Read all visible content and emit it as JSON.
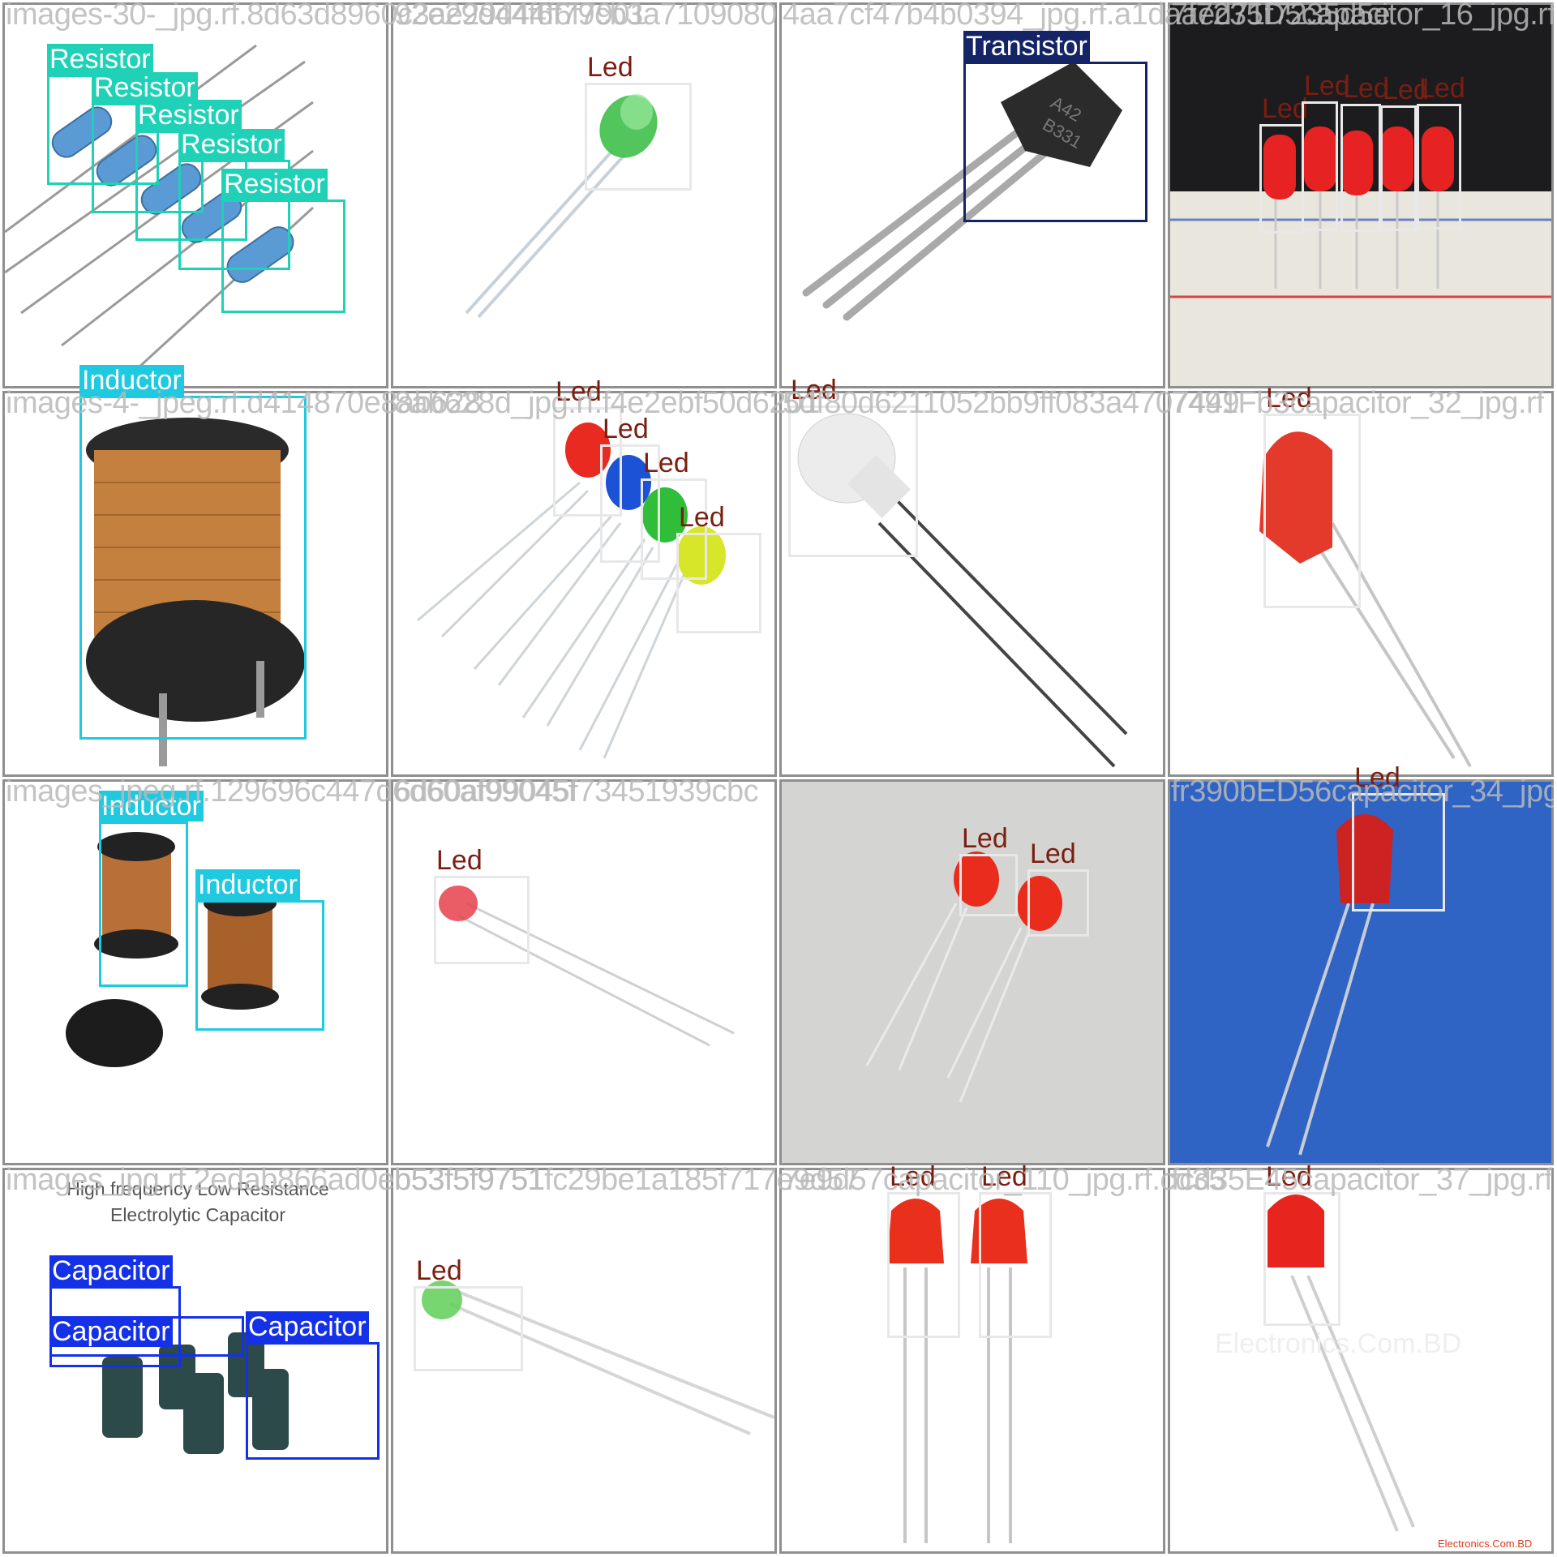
{
  "colors": {
    "Resistor": "#1fd1b6",
    "Led": "#e8e8e8",
    "Led_text": "#7a1e12",
    "Transistor": "#142466",
    "Inductor": "#1fc9e0",
    "Capacitor": "#1431e8",
    "tile_border": "#8f8f8f"
  },
  "tiles": [
    {
      "filename": "images-30-_jpg.rf.8d63d8960c3ae29d44f6f7901"
    },
    {
      "filename": "92e29d44f6f79cb3a7109080"
    },
    {
      "filename": "4aa7cf47b4b0394_jpg.rf.a1daaed71f7235d5e"
    },
    {
      "filename": "7f7235D5capacitor_16_jpg.rf"
    },
    {
      "filename": "images-4-_jpeg.rf.d414870e8ab628"
    },
    {
      "filename": "8ab628d_jpg.rf.f4e2ebf50d6201"
    },
    {
      "filename": "5df80d6211052bb9ff083a4707449"
    },
    {
      "filename": "7491Fb3capacitor_32_jpg.rf"
    },
    {
      "filename": "images_jpeg.rf.129696c447d6d60af99045f"
    },
    {
      "filename": "6d60af99045f73451939cbc"
    },
    {
      "filename": ""
    },
    {
      "filename": "fr390bED56capacitor_34_jpg.rf"
    },
    {
      "filename": "images_jpg.rf.2edab866ad0eb53f5f9751"
    },
    {
      "filename": "b53f5f9751fc29be1a185f717e9d57"
    },
    {
      "filename": "7e9d57capacitor_110_jpg.rf.cd35"
    },
    {
      "filename": "fcd35E45capacitor_37_jpg.rf"
    }
  ],
  "detections": [
    {
      "tile": 0,
      "label": "Resistor"
    },
    {
      "tile": 0,
      "label": "Resistor"
    },
    {
      "tile": 0,
      "label": "Resistor"
    },
    {
      "tile": 0,
      "label": "Resistor"
    },
    {
      "tile": 0,
      "label": "Resistor"
    },
    {
      "tile": 1,
      "label": "Led"
    },
    {
      "tile": 2,
      "label": "Transistor"
    },
    {
      "tile": 3,
      "label": "Led"
    },
    {
      "tile": 3,
      "label": "Led"
    },
    {
      "tile": 3,
      "label": "Led"
    },
    {
      "tile": 3,
      "label": "Led"
    },
    {
      "tile": 3,
      "label": "Led"
    },
    {
      "tile": 4,
      "label": "Inductor"
    },
    {
      "tile": 5,
      "label": "Led"
    },
    {
      "tile": 5,
      "label": "Led"
    },
    {
      "tile": 5,
      "label": "Led"
    },
    {
      "tile": 5,
      "label": "Led"
    },
    {
      "tile": 6,
      "label": "Led"
    },
    {
      "tile": 7,
      "label": "Led"
    },
    {
      "tile": 8,
      "label": "Inductor"
    },
    {
      "tile": 8,
      "label": "Inductor"
    },
    {
      "tile": 9,
      "label": "Led"
    },
    {
      "tile": 10,
      "label": "Led"
    },
    {
      "tile": 10,
      "label": "Led"
    },
    {
      "tile": 11,
      "label": "Led"
    },
    {
      "tile": 12,
      "label": "Capacitor"
    },
    {
      "tile": 12,
      "label": "Capacitor"
    },
    {
      "tile": 12,
      "label": "Capacitor"
    },
    {
      "tile": 13,
      "label": "Led"
    },
    {
      "tile": 14,
      "label": "Led"
    },
    {
      "tile": 14,
      "label": "Led"
    },
    {
      "tile": 15,
      "label": "Led"
    }
  ],
  "printed_text": {
    "capacitor_caption_line1": "High frequency Low Resistance",
    "capacitor_caption_line2": "Electrolytic Capacitor",
    "transistor_marking_line1": "A42",
    "transistor_marking_line2": "B331",
    "watermark_tile15": "Electronics.Com.BD",
    "logo_tile15": "Electronics.Com.BD"
  }
}
